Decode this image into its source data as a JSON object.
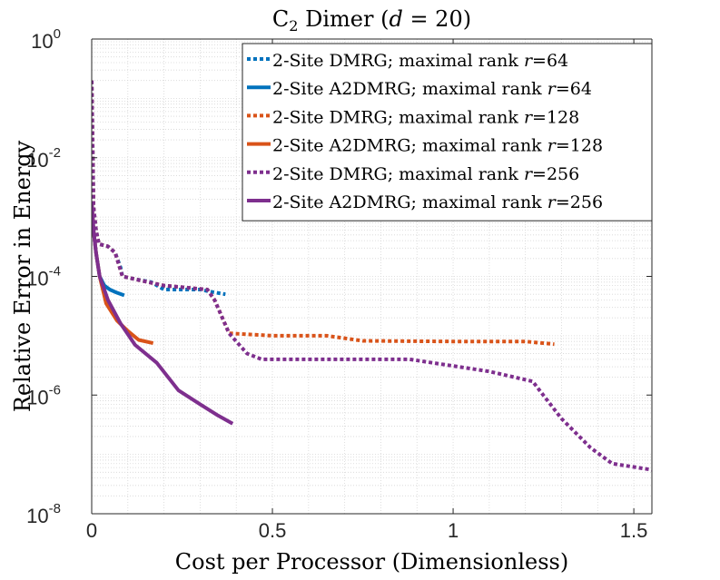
{
  "chart_data": {
    "type": "line",
    "title": "C₂ Dimer (d = 20)",
    "title_parts": {
      "main": "C",
      "sub": "2",
      "rest": " Dimer (",
      "var": "d",
      "eq": " = 20)"
    },
    "xlabel": "Cost per Processor (Dimensionless)",
    "ylabel": "Relative Error in Energy",
    "xlim": [
      0,
      1.55
    ],
    "ylim_log10": [
      -8,
      0
    ],
    "y_scale": "log",
    "grid": "minor dotted",
    "legend_position": "top-right",
    "x_ticks": [
      {
        "value": 0,
        "label": "0"
      },
      {
        "value": 0.5,
        "label": "0.5"
      },
      {
        "value": 1,
        "label": "1"
      },
      {
        "value": 1.5,
        "label": "1.5"
      }
    ],
    "y_ticks": [
      {
        "exp": 0,
        "base": "10",
        "sup": "0"
      },
      {
        "exp": -2,
        "base": "10",
        "sup": "-2"
      },
      {
        "exp": -4,
        "base": "10",
        "sup": "-4"
      },
      {
        "exp": -6,
        "base": "10",
        "sup": "-6"
      },
      {
        "exp": -8,
        "base": "10",
        "sup": "-8"
      }
    ],
    "series": [
      {
        "name": "2-Site DMRG; maximal rank r=64",
        "label_prefix": "2-Site DMRG; maximal rank ",
        "label_var": "r",
        "label_suffix": "=64",
        "color": "#0072BD",
        "style": "dotted",
        "points": [
          [
            0.0,
            0.2
          ],
          [
            0.005,
            0.0015
          ],
          [
            0.012,
            0.0006
          ],
          [
            0.02,
            0.00035
          ],
          [
            0.045,
            0.00032
          ],
          [
            0.065,
            0.00025
          ],
          [
            0.08,
            0.00014
          ],
          [
            0.085,
            0.0001
          ],
          [
            0.12,
            9e-05
          ],
          [
            0.165,
            8e-05
          ],
          [
            0.2,
            6e-05
          ],
          [
            0.3,
            6e-05
          ],
          [
            0.33,
            5.5e-05
          ],
          [
            0.37,
            5e-05
          ]
        ]
      },
      {
        "name": "2-Site A2DMRG; maximal rank r=64",
        "label_prefix": "2-Site A2DMRG; maximal rank ",
        "label_var": "r",
        "label_suffix": "=64",
        "color": "#0072BD",
        "style": "solid",
        "points": [
          [
            0.0,
            0.0018
          ],
          [
            0.005,
            0.0006
          ],
          [
            0.012,
            0.00025
          ],
          [
            0.022,
            0.0001
          ],
          [
            0.035,
            7e-05
          ],
          [
            0.05,
            6e-05
          ],
          [
            0.07,
            5.3e-05
          ],
          [
            0.09,
            4.8e-05
          ]
        ]
      },
      {
        "name": "2-Site DMRG; maximal rank r=128",
        "label_prefix": "2-Site DMRG; maximal rank ",
        "label_var": "r",
        "label_suffix": "=128",
        "color": "#D95319",
        "style": "dotted",
        "points": [
          [
            0.0,
            0.2
          ],
          [
            0.005,
            0.0015
          ],
          [
            0.012,
            0.0006
          ],
          [
            0.02,
            0.00035
          ],
          [
            0.045,
            0.00032
          ],
          [
            0.065,
            0.00025
          ],
          [
            0.085,
            0.0001
          ],
          [
            0.2,
            7e-05
          ],
          [
            0.32,
            6e-05
          ],
          [
            0.34,
            4e-05
          ],
          [
            0.38,
            1.1e-05
          ],
          [
            0.5,
            1e-05
          ],
          [
            0.65,
            1e-05
          ],
          [
            0.75,
            8.2e-06
          ],
          [
            1.0,
            8e-06
          ],
          [
            1.2,
            8e-06
          ],
          [
            1.28,
            7.2e-06
          ]
        ]
      },
      {
        "name": "2-Site A2DMRG; maximal rank r=128",
        "label_prefix": "2-Site A2DMRG; maximal rank ",
        "label_var": "r",
        "label_suffix": "=128",
        "color": "#D95319",
        "style": "solid",
        "points": [
          [
            0.0,
            0.0018
          ],
          [
            0.005,
            0.0006
          ],
          [
            0.012,
            0.00025
          ],
          [
            0.022,
            0.0001
          ],
          [
            0.04,
            3.5e-05
          ],
          [
            0.07,
            1.8e-05
          ],
          [
            0.1,
            1.2e-05
          ],
          [
            0.13,
            8.5e-06
          ],
          [
            0.17,
            7.5e-06
          ]
        ]
      },
      {
        "name": "2-Site DMRG; maximal rank r=256",
        "label_prefix": "2-Site DMRG; maximal rank ",
        "label_var": "r",
        "label_suffix": "=256",
        "color": "#7E2F8E",
        "style": "dotted",
        "points": [
          [
            0.0,
            0.2
          ],
          [
            0.005,
            0.0015
          ],
          [
            0.012,
            0.0006
          ],
          [
            0.02,
            0.00035
          ],
          [
            0.045,
            0.00032
          ],
          [
            0.065,
            0.00025
          ],
          [
            0.085,
            0.0001
          ],
          [
            0.2,
            7e-05
          ],
          [
            0.32,
            6e-05
          ],
          [
            0.34,
            4e-05
          ],
          [
            0.38,
            1.1e-05
          ],
          [
            0.43,
            5e-06
          ],
          [
            0.47,
            4e-06
          ],
          [
            0.6,
            4e-06
          ],
          [
            0.88,
            4e-06
          ],
          [
            1.1,
            2.5e-06
          ],
          [
            1.22,
            1.7e-06
          ],
          [
            1.3,
            4e-07
          ],
          [
            1.38,
            1.3e-07
          ],
          [
            1.44,
            7e-08
          ],
          [
            1.55,
            5.5e-08
          ]
        ]
      },
      {
        "name": "2-Site A2DMRG; maximal rank r=256",
        "label_prefix": "2-Site A2DMRG; maximal rank ",
        "label_var": "r",
        "label_suffix": "=256",
        "color": "#7E2F8E",
        "style": "solid",
        "points": [
          [
            0.0,
            0.0018
          ],
          [
            0.005,
            0.0006
          ],
          [
            0.012,
            0.00025
          ],
          [
            0.022,
            0.0001
          ],
          [
            0.045,
            4e-05
          ],
          [
            0.08,
            1.6e-05
          ],
          [
            0.12,
            7e-06
          ],
          [
            0.18,
            3.5e-06
          ],
          [
            0.24,
            1.2e-06
          ],
          [
            0.3,
            7e-07
          ],
          [
            0.35,
            4.5e-07
          ],
          [
            0.39,
            3.3e-07
          ]
        ]
      }
    ]
  }
}
